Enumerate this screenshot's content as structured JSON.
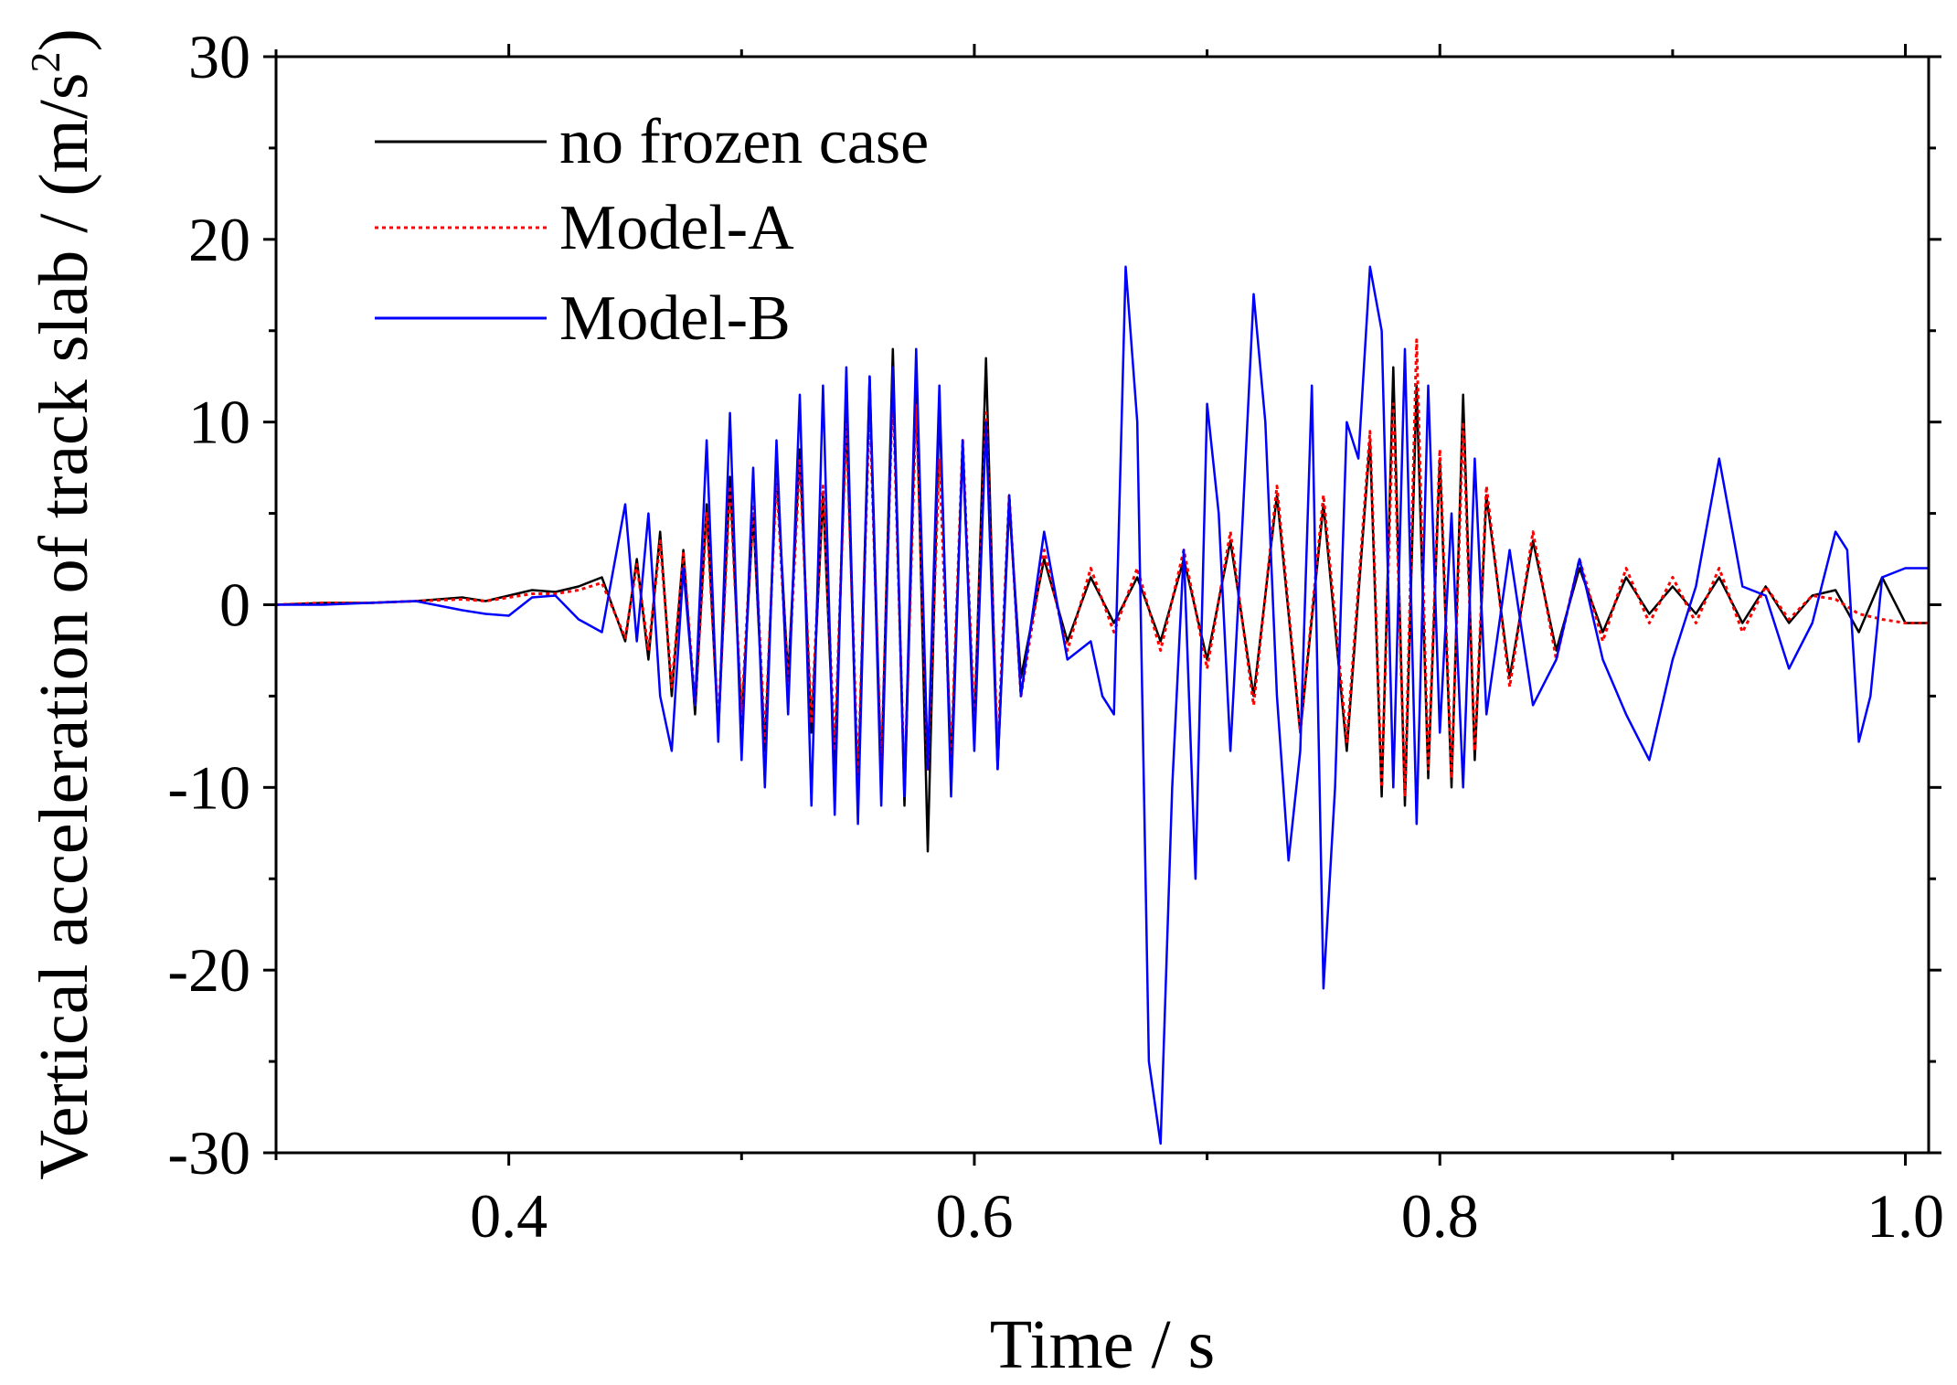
{
  "chart_data": {
    "type": "line",
    "xlabel": "Time / s",
    "ylabel": {
      "prefix": "Vertical acceleration of track slab / (m/s",
      "superscript": "2",
      "suffix": ")"
    },
    "xlim": [
      0.3,
      1.01
    ],
    "ylim": [
      -30,
      30
    ],
    "x_ticks": [
      0.4,
      0.6,
      0.8,
      1.0
    ],
    "x_tick_labels": [
      "0.4",
      "0.6",
      "0.8",
      "1.0"
    ],
    "y_ticks": [
      -30,
      -20,
      -10,
      0,
      10,
      20,
      30
    ],
    "y_tick_labels": [
      "-30",
      "-20",
      "-10",
      "0",
      "10",
      "20",
      "30"
    ],
    "grid": false,
    "legend_position": "top-left",
    "series": [
      {
        "name": "no frozen case",
        "color": "#000000",
        "dash": "solid",
        "x": [
          0.3,
          0.32,
          0.34,
          0.36,
          0.38,
          0.39,
          0.4,
          0.41,
          0.42,
          0.43,
          0.44,
          0.45,
          0.455,
          0.46,
          0.465,
          0.47,
          0.475,
          0.48,
          0.485,
          0.49,
          0.495,
          0.5,
          0.505,
          0.51,
          0.515,
          0.52,
          0.525,
          0.53,
          0.535,
          0.54,
          0.545,
          0.55,
          0.555,
          0.56,
          0.565,
          0.57,
          0.575,
          0.58,
          0.585,
          0.59,
          0.595,
          0.6,
          0.605,
          0.61,
          0.615,
          0.62,
          0.63,
          0.64,
          0.65,
          0.66,
          0.67,
          0.68,
          0.69,
          0.7,
          0.71,
          0.72,
          0.73,
          0.74,
          0.75,
          0.76,
          0.77,
          0.775,
          0.78,
          0.785,
          0.79,
          0.795,
          0.8,
          0.805,
          0.81,
          0.815,
          0.82,
          0.83,
          0.84,
          0.85,
          0.86,
          0.87,
          0.88,
          0.89,
          0.9,
          0.91,
          0.92,
          0.93,
          0.94,
          0.95,
          0.96,
          0.97,
          0.98,
          0.99,
          1.0,
          1.01
        ],
        "y": [
          0.0,
          0.1,
          0.1,
          0.2,
          0.4,
          0.2,
          0.5,
          0.8,
          0.7,
          1.0,
          1.5,
          -2.0,
          2.5,
          -3.0,
          4.0,
          -5.0,
          3.0,
          -6.0,
          5.5,
          -7.0,
          7.0,
          -6.5,
          5.0,
          -8.0,
          7.5,
          -4.0,
          8.5,
          -7.0,
          6.0,
          -9.0,
          10.5,
          -10.5,
          12.5,
          -9.5,
          14.0,
          -11.0,
          12.5,
          -13.5,
          11.0,
          -9.0,
          8.5,
          -7.0,
          13.5,
          -9.0,
          5.5,
          -4.0,
          2.5,
          -2.0,
          1.5,
          -1.0,
          1.5,
          -2.0,
          2.5,
          -3.0,
          3.5,
          -5.0,
          6.0,
          -7.0,
          5.5,
          -8.0,
          9.0,
          -10.5,
          13.0,
          -11.0,
          12.0,
          -9.5,
          8.0,
          -10.0,
          11.5,
          -8.5,
          6.0,
          -4.0,
          3.5,
          -2.5,
          2.0,
          -1.5,
          1.5,
          -0.5,
          1.0,
          -0.5,
          1.5,
          -1.0,
          1.0,
          -1.0,
          0.5,
          0.8,
          -1.5,
          1.5,
          -1.0,
          -1.0
        ]
      },
      {
        "name": "Model-A",
        "color": "#ff0000",
        "dash": "dotted",
        "x": [
          0.3,
          0.32,
          0.34,
          0.36,
          0.38,
          0.39,
          0.4,
          0.41,
          0.42,
          0.43,
          0.44,
          0.45,
          0.455,
          0.46,
          0.465,
          0.47,
          0.475,
          0.48,
          0.485,
          0.49,
          0.495,
          0.5,
          0.505,
          0.51,
          0.515,
          0.52,
          0.525,
          0.53,
          0.535,
          0.54,
          0.545,
          0.55,
          0.555,
          0.56,
          0.565,
          0.57,
          0.575,
          0.58,
          0.585,
          0.59,
          0.595,
          0.6,
          0.605,
          0.61,
          0.615,
          0.62,
          0.63,
          0.64,
          0.65,
          0.66,
          0.67,
          0.68,
          0.69,
          0.7,
          0.71,
          0.72,
          0.73,
          0.74,
          0.75,
          0.76,
          0.77,
          0.775,
          0.78,
          0.785,
          0.79,
          0.795,
          0.8,
          0.805,
          0.81,
          0.815,
          0.82,
          0.83,
          0.84,
          0.85,
          0.86,
          0.87,
          0.88,
          0.89,
          0.9,
          0.91,
          0.92,
          0.93,
          0.94,
          0.95,
          0.96,
          0.97,
          0.98,
          0.99,
          1.0,
          1.01
        ],
        "y": [
          0.0,
          0.1,
          0.1,
          0.2,
          0.3,
          0.2,
          0.4,
          0.6,
          0.6,
          0.8,
          1.2,
          -1.8,
          2.2,
          -2.5,
          3.5,
          -4.5,
          2.8,
          -5.5,
          5.0,
          -6.5,
          6.5,
          -6.0,
          5.5,
          -7.5,
          7.0,
          -4.5,
          8.0,
          -6.5,
          6.5,
          -8.0,
          10.0,
          -9.5,
          11.0,
          -9.0,
          12.0,
          -10.0,
          11.0,
          -9.0,
          8.0,
          -8.5,
          9.0,
          -6.5,
          10.5,
          -8.0,
          6.0,
          -5.0,
          3.0,
          -2.5,
          2.0,
          -1.5,
          2.0,
          -2.5,
          3.0,
          -3.5,
          4.0,
          -5.5,
          6.5,
          -7.0,
          6.0,
          -7.5,
          9.5,
          -10.0,
          11.0,
          -10.5,
          14.5,
          -9.0,
          8.5,
          -9.5,
          10.0,
          -8.0,
          6.5,
          -4.5,
          4.0,
          -3.0,
          2.5,
          -2.0,
          2.0,
          -1.0,
          1.5,
          -1.0,
          2.0,
          -1.5,
          1.0,
          -0.8,
          0.5,
          0.3,
          -0.5,
          -0.8,
          -1.0,
          -1.0
        ]
      },
      {
        "name": "Model-B",
        "color": "#0000ff",
        "dash": "solid",
        "x": [
          0.3,
          0.32,
          0.34,
          0.36,
          0.38,
          0.39,
          0.4,
          0.41,
          0.42,
          0.43,
          0.44,
          0.45,
          0.455,
          0.46,
          0.465,
          0.47,
          0.475,
          0.48,
          0.485,
          0.49,
          0.495,
          0.5,
          0.505,
          0.51,
          0.515,
          0.52,
          0.525,
          0.53,
          0.535,
          0.54,
          0.545,
          0.55,
          0.555,
          0.56,
          0.565,
          0.57,
          0.575,
          0.58,
          0.585,
          0.59,
          0.595,
          0.6,
          0.605,
          0.61,
          0.615,
          0.62,
          0.63,
          0.64,
          0.65,
          0.655,
          0.66,
          0.665,
          0.67,
          0.675,
          0.68,
          0.685,
          0.69,
          0.695,
          0.7,
          0.705,
          0.71,
          0.715,
          0.72,
          0.725,
          0.73,
          0.735,
          0.74,
          0.745,
          0.75,
          0.755,
          0.76,
          0.765,
          0.77,
          0.775,
          0.78,
          0.785,
          0.79,
          0.795,
          0.8,
          0.805,
          0.81,
          0.815,
          0.82,
          0.83,
          0.84,
          0.85,
          0.86,
          0.87,
          0.88,
          0.89,
          0.9,
          0.91,
          0.92,
          0.93,
          0.94,
          0.95,
          0.96,
          0.97,
          0.975,
          0.98,
          0.985,
          0.99,
          1.0,
          1.01
        ],
        "y": [
          0.0,
          0.0,
          0.1,
          0.2,
          -0.3,
          -0.5,
          -0.6,
          0.4,
          0.5,
          -0.8,
          -1.5,
          5.5,
          -2.0,
          5.0,
          -5.0,
          -8.0,
          2.0,
          -5.5,
          9.0,
          -7.5,
          10.5,
          -8.5,
          7.5,
          -10.0,
          9.0,
          -6.0,
          11.5,
          -11.0,
          12.0,
          -11.5,
          13.0,
          -12.0,
          12.5,
          -11.0,
          13.0,
          -10.5,
          14.0,
          -9.0,
          12.0,
          -10.5,
          9.0,
          -8.0,
          10.0,
          -9.0,
          6.0,
          -5.0,
          4.0,
          -3.0,
          -2.0,
          -5.0,
          -6.0,
          18.5,
          10.0,
          -25.0,
          -29.5,
          -10.0,
          3.0,
          -15.0,
          11.0,
          5.0,
          -8.0,
          4.0,
          17.0,
          10.0,
          -5.0,
          -14.0,
          -8.0,
          12.0,
          -21.0,
          -10.0,
          10.0,
          8.0,
          18.5,
          15.0,
          -10.0,
          14.0,
          -12.0,
          12.0,
          -7.0,
          5.0,
          -10.0,
          8.0,
          -6.0,
          3.0,
          -5.5,
          -3.0,
          2.5,
          -3.0,
          -6.0,
          -8.5,
          -3.0,
          1.0,
          8.0,
          1.0,
          0.5,
          -3.5,
          -1.0,
          4.0,
          3.0,
          -7.5,
          -5.0,
          1.5,
          2.0,
          2.0
        ]
      }
    ]
  }
}
